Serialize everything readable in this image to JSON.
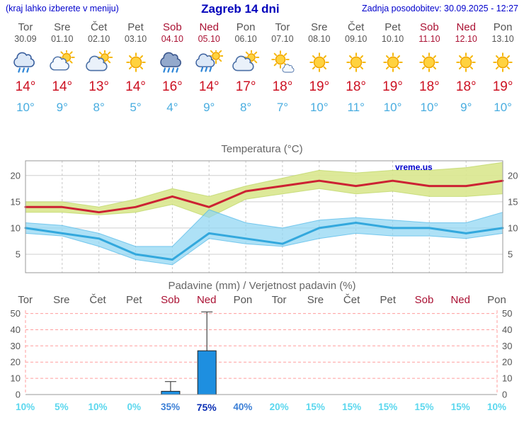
{
  "header": {
    "hint": "(kraj lahko izberete v meniju)",
    "title": "Zagreb 14 dni",
    "updated": "Zadnja posodobitev: 30.09.2025 - 12:27"
  },
  "watermark": "vreme.us",
  "days": [
    {
      "name": "Tor",
      "date": "30.09",
      "weekend": false,
      "icon": "rain",
      "tmax": "14°",
      "tmin": "10°"
    },
    {
      "name": "Sre",
      "date": "01.10",
      "weekend": false,
      "icon": "sun-cloud",
      "tmax": "14°",
      "tmin": "9°"
    },
    {
      "name": "Čet",
      "date": "02.10",
      "weekend": false,
      "icon": "cloud-sun",
      "tmax": "13°",
      "tmin": "8°"
    },
    {
      "name": "Pet",
      "date": "03.10",
      "weekend": false,
      "icon": "sun",
      "tmax": "14°",
      "tmin": "5°"
    },
    {
      "name": "Sob",
      "date": "04.10",
      "weekend": true,
      "icon": "rain-heavy",
      "tmax": "16°",
      "tmin": "4°"
    },
    {
      "name": "Ned",
      "date": "05.10",
      "weekend": true,
      "icon": "sun-rain",
      "tmax": "14°",
      "tmin": "9°"
    },
    {
      "name": "Pon",
      "date": "06.10",
      "weekend": false,
      "icon": "cloud-sun",
      "tmax": "17°",
      "tmin": "8°"
    },
    {
      "name": "Tor",
      "date": "07.10",
      "weekend": false,
      "icon": "sun-small-cloud",
      "tmax": "18°",
      "tmin": "7°"
    },
    {
      "name": "Sre",
      "date": "08.10",
      "weekend": false,
      "icon": "sun",
      "tmax": "19°",
      "tmin": "10°"
    },
    {
      "name": "Čet",
      "date": "09.10",
      "weekend": false,
      "icon": "sun",
      "tmax": "18°",
      "tmin": "11°"
    },
    {
      "name": "Pet",
      "date": "10.10",
      "weekend": false,
      "icon": "sun",
      "tmax": "19°",
      "tmin": "10°"
    },
    {
      "name": "Sob",
      "date": "11.10",
      "weekend": true,
      "icon": "sun",
      "tmax": "18°",
      "tmin": "10°"
    },
    {
      "name": "Ned",
      "date": "12.10",
      "weekend": true,
      "icon": "sun",
      "tmax": "18°",
      "tmin": "9°"
    },
    {
      "name": "Pon",
      "date": "13.10",
      "weekend": false,
      "icon": "sun",
      "tmax": "19°",
      "tmin": "10°"
    }
  ],
  "charts": {
    "temperature_title": "Temperatura (°C)",
    "precipitation_title": "Padavine (mm) / Verjetnost padavin (%)"
  },
  "chart_data": [
    {
      "type": "line",
      "title": "Temperatura (°C)",
      "x_labels": [
        "Tor",
        "Sre",
        "Čet",
        "Pet",
        "Sob",
        "Ned",
        "Pon",
        "Tor",
        "Sre",
        "Čet",
        "Pet",
        "Sob",
        "Ned",
        "Pon"
      ],
      "ylim": [
        1.5,
        22.8
      ],
      "yticks": [
        5,
        10,
        15,
        20
      ],
      "grid": true,
      "legend": "none",
      "series": [
        {
          "name": "tmax",
          "color": "#CC2233",
          "band_color": "#D9E78E",
          "band_stroke": "#BBD45F",
          "values": [
            14,
            14,
            13,
            14,
            16,
            14,
            17,
            18,
            19,
            18,
            19,
            18,
            18,
            19
          ],
          "band_upper": [
            15,
            15,
            14,
            15.5,
            17.5,
            16,
            18,
            19.5,
            21,
            20.5,
            21,
            21,
            21.5,
            22.5
          ],
          "band_lower": [
            13,
            13,
            12.5,
            13,
            14.5,
            12,
            15.5,
            16.5,
            17.5,
            16.5,
            17,
            16,
            16,
            16.5
          ]
        },
        {
          "name": "tmin",
          "color": "#33A8DD",
          "band_color": "#8FD6F2",
          "band_stroke": "#4FB8E8",
          "values": [
            10,
            9,
            8,
            5,
            4,
            9,
            8,
            7,
            10,
            11,
            10,
            10,
            9,
            10
          ],
          "band_upper": [
            11,
            10.5,
            9,
            6.5,
            6.5,
            13.5,
            11,
            10,
            11.5,
            12,
            11.5,
            11,
            11,
            13
          ],
          "band_lower": [
            9,
            8.5,
            6.5,
            4,
            3,
            8,
            7,
            6.5,
            8,
            9,
            8.5,
            8.5,
            8,
            9
          ]
        }
      ]
    },
    {
      "type": "bar",
      "title": "Padavine (mm) / Verjetnost padavin (%)",
      "x_labels": [
        "Tor",
        "Sre",
        "Čet",
        "Pet",
        "Sob",
        "Ned",
        "Pon",
        "Tor",
        "Sre",
        "Čet",
        "Pet",
        "Sob",
        "Ned",
        "Pon"
      ],
      "ylim": [
        0,
        52
      ],
      "yticks": [
        0,
        10,
        20,
        30,
        40,
        50
      ],
      "bar_color": "#1E8FE0",
      "values": [
        0,
        0,
        0,
        0,
        2,
        27,
        0,
        0,
        0,
        0,
        0,
        0,
        0,
        0
      ],
      "whisker_max": [
        0,
        0,
        0,
        0,
        8,
        51,
        0,
        0,
        0,
        0,
        0,
        0,
        0,
        0
      ],
      "probabilities": [
        "10%",
        "5%",
        "10%",
        "0%",
        "35%",
        "75%",
        "40%",
        "20%",
        "15%",
        "15%",
        "15%",
        "15%",
        "15%",
        "10%"
      ],
      "prob_levels": [
        "light",
        "light",
        "light",
        "light",
        "medium",
        "strong",
        "medium",
        "light",
        "light",
        "light",
        "light",
        "light",
        "light",
        "light"
      ]
    }
  ]
}
